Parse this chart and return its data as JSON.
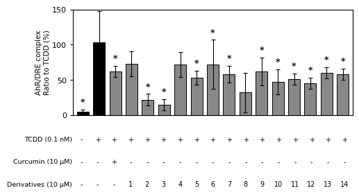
{
  "bar_values": [
    5,
    103,
    62,
    73,
    22,
    15,
    72,
    53,
    72,
    58,
    32,
    62,
    47,
    51,
    45,
    60,
    58
  ],
  "bar_errors": [
    3,
    45,
    8,
    18,
    8,
    8,
    18,
    10,
    35,
    12,
    28,
    20,
    18,
    8,
    8,
    8,
    8
  ],
  "bar_colors": [
    "#000000",
    "#000000",
    "#888888",
    "#888888",
    "#888888",
    "#888888",
    "#888888",
    "#888888",
    "#888888",
    "#888888",
    "#888888",
    "#888888",
    "#888888",
    "#888888",
    "#888888",
    "#888888",
    "#888888"
  ],
  "asterisk_bars": [
    0,
    2,
    4,
    5,
    7,
    8,
    9,
    11,
    12,
    13,
    14,
    15,
    16
  ],
  "ylabel_line1": "AhR/DRE complex",
  "ylabel_line2": "Ratio to TCDD (%)",
  "ylim": [
    0,
    150
  ],
  "yticks": [
    0,
    50,
    100,
    150
  ],
  "tcdd_row": [
    "-",
    "+",
    "+",
    "+",
    "+",
    "+",
    "+",
    "+",
    "+",
    "+",
    "+",
    "+",
    "+",
    "+",
    "+",
    "+",
    "+"
  ],
  "curcumin_row": [
    "-",
    "-",
    "+",
    "-",
    "-",
    "-",
    "-",
    "-",
    "-",
    "-",
    "-",
    "-",
    "-",
    "-",
    "-",
    "-",
    "-"
  ],
  "derivatives_row": [
    "-",
    "-",
    "-",
    "1",
    "2",
    "3",
    "4",
    "5",
    "6",
    "7",
    "8",
    "9",
    "10",
    "11",
    "12",
    "13",
    "14"
  ],
  "row_labels": [
    "TCDD (0.1 nM)",
    "Curcumin (10 μM)",
    "Derivatives (10 μM)"
  ]
}
